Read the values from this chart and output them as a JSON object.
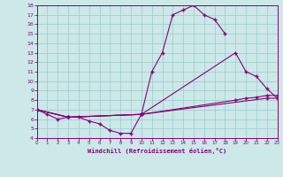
{
  "bg_color": "#cce8e8",
  "line_color": "#880077",
  "grid_color": "#99cccc",
  "xlabel": "Windchill (Refroidissement éolien,°C)",
  "xlim": [
    0,
    23
  ],
  "ylim": [
    4,
    18
  ],
  "xticks": [
    0,
    1,
    2,
    3,
    4,
    5,
    6,
    7,
    8,
    9,
    10,
    11,
    12,
    13,
    14,
    15,
    16,
    17,
    18,
    19,
    20,
    21,
    22,
    23
  ],
  "yticks": [
    4,
    5,
    6,
    7,
    8,
    9,
    10,
    11,
    12,
    13,
    14,
    15,
    16,
    17,
    18
  ],
  "curve1_x": [
    0,
    1,
    2,
    3,
    4,
    5,
    6,
    7,
    8,
    9,
    10,
    11,
    12,
    13,
    14,
    15,
    16,
    17,
    18
  ],
  "curve1_y": [
    7.0,
    6.5,
    6.0,
    6.2,
    6.2,
    5.8,
    5.5,
    4.8,
    4.5,
    4.5,
    6.5,
    11.0,
    13.0,
    17.0,
    17.5,
    18.0,
    17.0,
    16.5,
    15.0
  ],
  "curve2_x": [
    0,
    3,
    10,
    19,
    20,
    21,
    22,
    23
  ],
  "curve2_y": [
    7.0,
    6.2,
    6.5,
    13.0,
    11.0,
    10.5,
    9.2,
    8.2
  ],
  "curve3_x": [
    0,
    3,
    10,
    19,
    20,
    21,
    22,
    23
  ],
  "curve3_y": [
    7.0,
    6.2,
    6.5,
    8.0,
    8.2,
    8.3,
    8.5,
    8.5
  ],
  "curve4_x": [
    0,
    3,
    10,
    22,
    23
  ],
  "curve4_y": [
    7.0,
    6.2,
    6.5,
    8.2,
    8.2
  ]
}
